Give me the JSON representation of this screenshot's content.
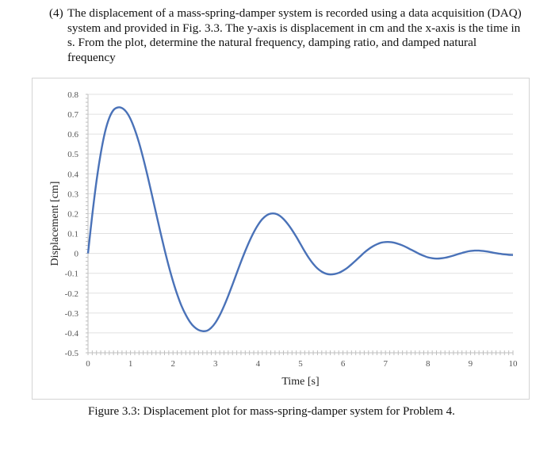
{
  "problem": {
    "number": "(4)",
    "text": "The displacement of a mass-spring-damper system is recorded using a data acquisition (DAQ) system and provided in Fig. 3.3. The y-axis is displacement in cm and the x-axis is the time in s. From the plot, determine the natural frequency, damping ratio, and damped natural frequency"
  },
  "caption": "Figure 3.3: Displacement plot for mass-spring-damper system for Problem 4.",
  "chart_data": {
    "type": "line",
    "title": "",
    "xlabel": "Time [s]",
    "ylabel": "Displacement [cm]",
    "xlim": [
      0,
      10
    ],
    "ylim": [
      -0.5,
      0.8
    ],
    "x_ticks": [
      "0",
      "1",
      "2",
      "3",
      "4",
      "5",
      "6",
      "7",
      "8",
      "9",
      "10"
    ],
    "y_ticks": [
      "0.8",
      "0.7",
      "0.6",
      "0.5",
      "0.4",
      "0.3",
      "0.2",
      "0.1",
      "0",
      "-0.1",
      "-0.2",
      "-0.3",
      "-0.4",
      "-0.5"
    ],
    "grid": true,
    "line_color": "#4a72b8",
    "series": [
      {
        "x": [
          0,
          0.1,
          0.2,
          0.3,
          0.4,
          0.5,
          0.6,
          0.7,
          0.8,
          0.9,
          1.0,
          1.1,
          1.2,
          1.3,
          1.4,
          1.5,
          1.6,
          1.7,
          1.8,
          1.9,
          2.0,
          2.1,
          2.2,
          2.3,
          2.4,
          2.5,
          2.6,
          2.7,
          2.8,
          2.9,
          3.0,
          3.1,
          3.2,
          3.3,
          3.4,
          3.5,
          3.6,
          3.7,
          3.8,
          3.9,
          4.0,
          4.1,
          4.2,
          4.3,
          4.4,
          4.5,
          4.6,
          4.7,
          4.8,
          4.9,
          5.0,
          5.1,
          5.2,
          5.3,
          5.4,
          5.5,
          5.6,
          5.7,
          5.8,
          5.9,
          6.0,
          6.1,
          6.2,
          6.3,
          6.4,
          6.5,
          6.6,
          6.7,
          6.8,
          6.9,
          7.0,
          7.1,
          7.2,
          7.3,
          7.4,
          7.5,
          7.6,
          7.7,
          7.8,
          7.9,
          8.0,
          8.1,
          8.2,
          8.3,
          8.4,
          8.5,
          8.6,
          8.7,
          8.8,
          8.9,
          9.0,
          9.1,
          9.2,
          9.3,
          9.4,
          9.5,
          9.6,
          9.7,
          9.8,
          9.9,
          10.0
        ],
        "y": [
          0.0,
          0.193,
          0.364,
          0.503,
          0.61,
          0.681,
          0.721,
          0.734,
          0.731,
          0.712,
          0.676,
          0.623,
          0.557,
          0.478,
          0.391,
          0.298,
          0.204,
          0.11,
          0.02,
          -0.064,
          -0.14,
          -0.207,
          -0.264,
          -0.309,
          -0.345,
          -0.37,
          -0.385,
          -0.391,
          -0.389,
          -0.374,
          -0.348,
          -0.311,
          -0.265,
          -0.213,
          -0.157,
          -0.099,
          -0.042,
          0.012,
          0.062,
          0.106,
          0.143,
          0.172,
          0.191,
          0.2,
          0.2,
          0.191,
          0.173,
          0.148,
          0.118,
          0.084,
          0.047,
          0.01,
          -0.024,
          -0.053,
          -0.076,
          -0.092,
          -0.102,
          -0.106,
          -0.104,
          -0.098,
          -0.087,
          -0.073,
          -0.055,
          -0.036,
          -0.016,
          0.004,
          0.021,
          0.035,
          0.046,
          0.054,
          0.057,
          0.057,
          0.054,
          0.048,
          0.04,
          0.03,
          0.019,
          0.008,
          -0.003,
          -0.012,
          -0.02,
          -0.024,
          -0.026,
          -0.025,
          -0.022,
          -0.017,
          -0.011,
          -0.004,
          0.002,
          0.008,
          0.012,
          0.014,
          0.014,
          0.012,
          0.009,
          0.005,
          0.001,
          -0.002,
          -0.005,
          -0.007,
          -0.008
        ]
      }
    ]
  }
}
